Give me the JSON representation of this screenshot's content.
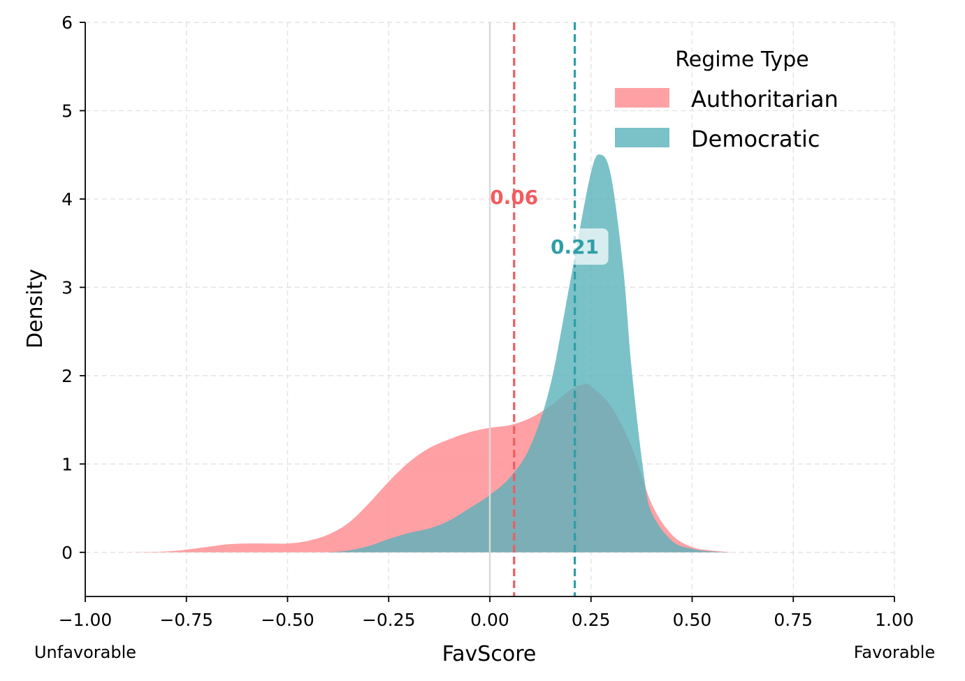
{
  "chart_data": {
    "type": "area",
    "title": "",
    "xlabel": "FavScore",
    "ylabel": "Density",
    "xlim": [
      -1.0,
      1.0
    ],
    "ylim": [
      -0.5,
      6
    ],
    "xticks": [
      -1.0,
      -0.75,
      -0.5,
      -0.25,
      0.0,
      0.25,
      0.5,
      0.75,
      1.0
    ],
    "xtick_labels": [
      "−1.00",
      "−0.75",
      "−0.50",
      "−0.25",
      "0.00",
      "0.25",
      "0.50",
      "0.75",
      "1.00"
    ],
    "yticks": [
      0,
      1,
      2,
      3,
      4,
      5,
      6
    ],
    "ytick_labels": [
      "0",
      "1",
      "2",
      "3",
      "4",
      "5",
      "6"
    ],
    "grid": true,
    "extreme_labels": {
      "left": "Unfavorable",
      "right": "Favorable"
    },
    "reference_line_x": 0.0,
    "legend": {
      "title": "Regime Type",
      "position": "top-right"
    },
    "series": [
      {
        "name": "Authoritarian",
        "color": "#ff8a8d",
        "mean_color": "#f25c5e",
        "mean": 0.06,
        "mean_label": "0.06",
        "x": [
          -0.9,
          -0.8,
          -0.75,
          -0.7,
          -0.65,
          -0.6,
          -0.55,
          -0.5,
          -0.45,
          -0.4,
          -0.35,
          -0.3,
          -0.25,
          -0.2,
          -0.15,
          -0.1,
          -0.05,
          0.0,
          0.05,
          0.1,
          0.15,
          0.2,
          0.23,
          0.25,
          0.3,
          0.35,
          0.4,
          0.45,
          0.5,
          0.55,
          0.6
        ],
        "values": [
          0.0,
          0.01,
          0.03,
          0.06,
          0.09,
          0.1,
          0.1,
          0.1,
          0.13,
          0.2,
          0.33,
          0.55,
          0.8,
          1.02,
          1.18,
          1.28,
          1.36,
          1.41,
          1.44,
          1.52,
          1.66,
          1.84,
          1.9,
          1.88,
          1.65,
          1.2,
          0.55,
          0.2,
          0.06,
          0.02,
          0.0
        ]
      },
      {
        "name": "Democratic",
        "color": "#5ab2ba",
        "mean_color": "#2e9ea6",
        "mean": 0.21,
        "mean_label": "0.21",
        "x": [
          -0.4,
          -0.35,
          -0.3,
          -0.25,
          -0.2,
          -0.15,
          -0.1,
          -0.05,
          0.0,
          0.05,
          0.1,
          0.15,
          0.2,
          0.25,
          0.275,
          0.3,
          0.33,
          0.35,
          0.38,
          0.4,
          0.45,
          0.5,
          0.55,
          0.6
        ],
        "values": [
          0.0,
          0.02,
          0.07,
          0.15,
          0.22,
          0.27,
          0.36,
          0.5,
          0.65,
          0.85,
          1.2,
          1.9,
          3.1,
          4.3,
          4.5,
          4.25,
          3.2,
          2.1,
          0.9,
          0.45,
          0.13,
          0.04,
          0.01,
          0.0
        ]
      }
    ]
  }
}
